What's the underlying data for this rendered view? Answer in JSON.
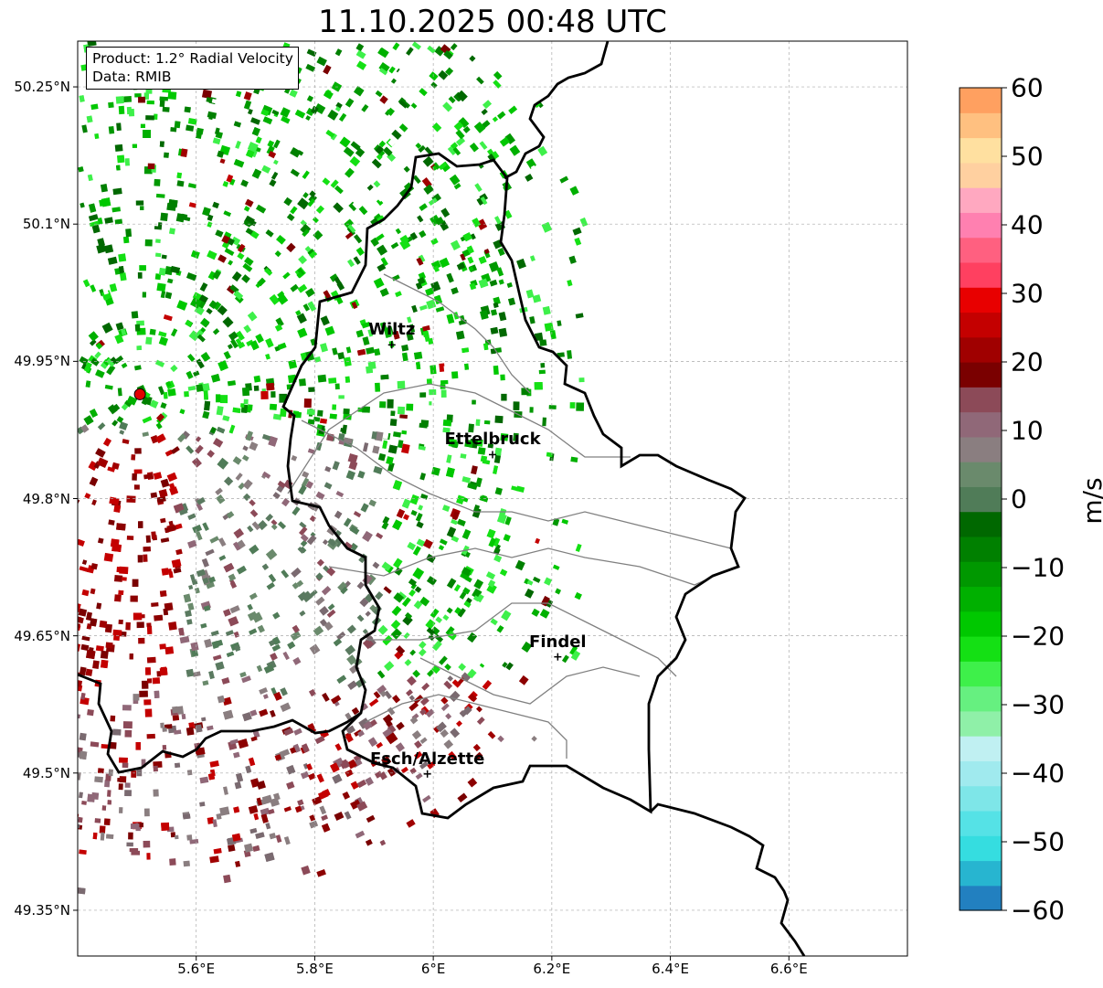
{
  "title": "11.10.2025 00:48 UTC",
  "info": {
    "product": "Product: 1.2° Radial Velocity",
    "source": "Data: RMIB"
  },
  "map": {
    "lon_range": [
      5.4,
      6.8
    ],
    "lat_range": [
      49.3,
      50.3
    ],
    "lat_ticks": [
      {
        "value": 50.25,
        "label": "50.25°N"
      },
      {
        "value": 50.1,
        "label": "50.1°N"
      },
      {
        "value": 49.95,
        "label": "49.95°N"
      },
      {
        "value": 49.8,
        "label": "49.8°N"
      },
      {
        "value": 49.65,
        "label": "49.65°N"
      },
      {
        "value": 49.5,
        "label": "49.5°N"
      },
      {
        "value": 49.35,
        "label": "49.35°N"
      }
    ],
    "lon_ticks": [
      {
        "value": 5.6,
        "label": "5.6°E"
      },
      {
        "value": 5.8,
        "label": "5.8°E"
      },
      {
        "value": 6.0,
        "label": "6°E"
      },
      {
        "value": 6.2,
        "label": "6.2°E"
      },
      {
        "value": 6.4,
        "label": "6.4°E"
      },
      {
        "value": 6.6,
        "label": "6.6°E"
      }
    ],
    "radar_site": {
      "lon": 5.505,
      "lat": 49.914
    },
    "cities": [
      {
        "name": "Wiltz",
        "lon": 5.93,
        "lat": 49.968
      },
      {
        "name": "Ettelbruck",
        "lon": 6.1,
        "lat": 49.848
      },
      {
        "name": "Findel",
        "lon": 6.21,
        "lat": 49.627
      },
      {
        "name": "Esch/Alzette",
        "lon": 5.99,
        "lat": 49.499
      }
    ]
  },
  "colorbar": {
    "label": "m/s",
    "min": -60,
    "max": 60,
    "ticks": [
      {
        "value": 60,
        "label": "60"
      },
      {
        "value": 50,
        "label": "50"
      },
      {
        "value": 40,
        "label": "40"
      },
      {
        "value": 30,
        "label": "30"
      },
      {
        "value": 20,
        "label": "20"
      },
      {
        "value": 10,
        "label": "10"
      },
      {
        "value": 0,
        "label": "0"
      },
      {
        "value": -10,
        "label": "−10"
      },
      {
        "value": -20,
        "label": "−20"
      },
      {
        "value": -30,
        "label": "−30"
      },
      {
        "value": -40,
        "label": "−40"
      },
      {
        "value": -50,
        "label": "−50"
      },
      {
        "value": -60,
        "label": "−60"
      }
    ],
    "colors": [
      "#2280c0",
      "#27b5d0",
      "#35dde0",
      "#55e2e6",
      "#7ee6e8",
      "#a0eaee",
      "#c0f0f2",
      "#8ff0a8",
      "#66f080",
      "#3ef04a",
      "#14e014",
      "#00c800",
      "#00b000",
      "#009800",
      "#008000",
      "#006800",
      "#507c58",
      "#6a8a6c",
      "#8a7e80",
      "#906878",
      "#8c4a58",
      "#7a0000",
      "#a00000",
      "#c40000",
      "#e80000",
      "#ff4060",
      "#ff6080",
      "#ff80b0",
      "#ffa8c0",
      "#ffd0a0",
      "#ffe0a0",
      "#ffc080",
      "#ffa060"
    ]
  },
  "colors": {
    "border": "#000000",
    "canton_lines": "#808080",
    "grid": "#aaaaaa",
    "radar_marker": "#e00000"
  }
}
